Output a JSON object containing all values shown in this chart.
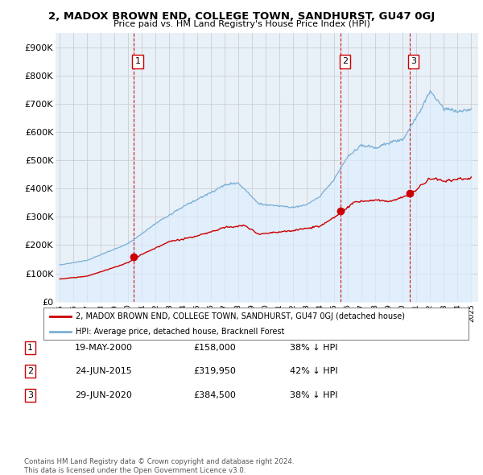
{
  "title": "2, MADOX BROWN END, COLLEGE TOWN, SANDHURST, GU47 0GJ",
  "subtitle": "Price paid vs. HM Land Registry's House Price Index (HPI)",
  "ylim": [
    0,
    950000
  ],
  "yticks": [
    0,
    100000,
    200000,
    300000,
    400000,
    500000,
    600000,
    700000,
    800000,
    900000
  ],
  "ytick_labels": [
    "£0",
    "£100K",
    "£200K",
    "£300K",
    "£400K",
    "£500K",
    "£600K",
    "£700K",
    "£800K",
    "£900K"
  ],
  "sale_dates": [
    2000.38,
    2015.48,
    2020.49
  ],
  "sale_prices": [
    158000,
    319950,
    384500
  ],
  "sale_labels": [
    "1",
    "2",
    "3"
  ],
  "legend_red": "2, MADOX BROWN END, COLLEGE TOWN, SANDHURST, GU47 0GJ (detached house)",
  "legend_blue": "HPI: Average price, detached house, Bracknell Forest",
  "table_data": [
    [
      "1",
      "19-MAY-2000",
      "£158,000",
      "38% ↓ HPI"
    ],
    [
      "2",
      "24-JUN-2015",
      "£319,950",
      "42% ↓ HPI"
    ],
    [
      "3",
      "29-JUN-2020",
      "£384,500",
      "38% ↓ HPI"
    ]
  ],
  "footer": "Contains HM Land Registry data © Crown copyright and database right 2024.\nThis data is licensed under the Open Government Licence v3.0.",
  "red_color": "#cc0000",
  "blue_color": "#7bafd4",
  "blue_fill": "#ddeeff",
  "dashed_color": "#cc0000",
  "bg_color": "#ffffff",
  "grid_color": "#c8c8c8",
  "chart_bg": "#e8f0f8"
}
